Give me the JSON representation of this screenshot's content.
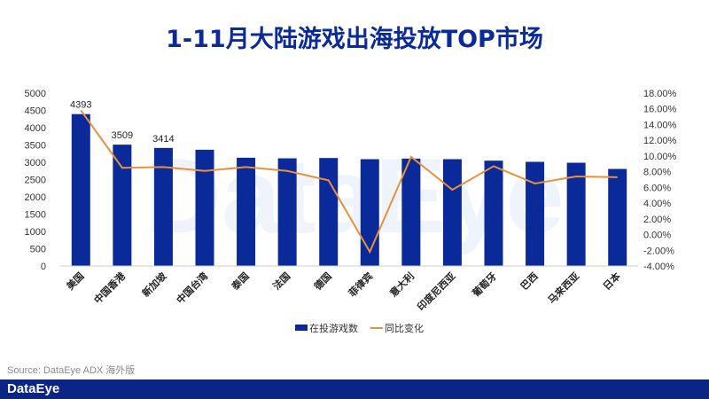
{
  "title": "1-11月大陆游戏出海投放TOP市场",
  "source": "Source: DataEye ADX 海外版",
  "footer_logo": "DataEye",
  "watermark": "DataEye",
  "chart_data": {
    "type": "bar+line",
    "categories": [
      "美国",
      "中国香港",
      "新加坡",
      "中国台湾",
      "泰国",
      "法国",
      "德国",
      "菲律宾",
      "意大利",
      "印度尼西亚",
      "葡萄牙",
      "巴西",
      "马来西亚",
      "日本"
    ],
    "series": [
      {
        "name": "在投游戏数",
        "type": "bar",
        "axis": "left",
        "color": "#0a2a9a",
        "values": [
          4393,
          3509,
          3414,
          3362,
          3131,
          3114,
          3123,
          3089,
          3106,
          3089,
          3046,
          3012,
          2986,
          2807
        ],
        "labels": [
          "4393",
          "3509",
          "3414",
          null,
          null,
          null,
          null,
          null,
          null,
          null,
          null,
          null,
          null,
          null
        ]
      },
      {
        "name": "同比变化",
        "type": "line",
        "axis": "right",
        "color": "#e8913a",
        "values": [
          15.8,
          8.5,
          8.6,
          8.1,
          8.6,
          8.1,
          6.9,
          -2.2,
          9.9,
          5.7,
          8.7,
          6.5,
          7.4,
          7.3
        ]
      }
    ],
    "left_axis": {
      "min": 0,
      "max": 5000,
      "step": 500,
      "ticks": [
        "0",
        "500",
        "1000",
        "1500",
        "2000",
        "2500",
        "3000",
        "3500",
        "4000",
        "4500",
        "5000"
      ]
    },
    "right_axis": {
      "min": -4,
      "max": 18,
      "step": 2,
      "ticks": [
        "-4.00%",
        "-2.00%",
        "0.00%",
        "2.00%",
        "4.00%",
        "6.00%",
        "8.00%",
        "10.00%",
        "12.00%",
        "14.00%",
        "16.00%",
        "18.00%"
      ]
    },
    "legend": {
      "position": "bottom",
      "items": [
        "在投游戏数",
        "同比变化"
      ]
    },
    "grid": false
  }
}
